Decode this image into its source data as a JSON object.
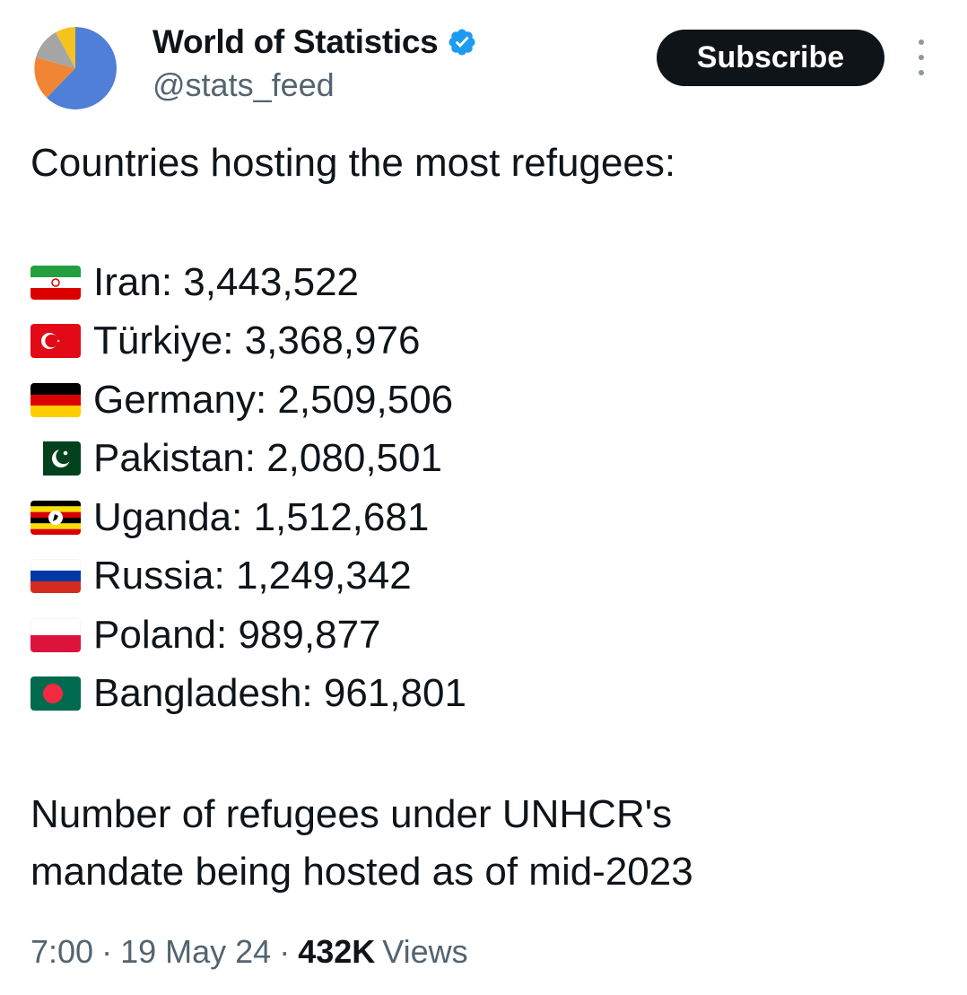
{
  "author": {
    "display_name": "World of Statistics",
    "handle": "@stats_feed",
    "verified_icon": "verified-badge-icon"
  },
  "actions": {
    "subscribe_label": "Subscribe",
    "more_icon": "more-vertical-icon"
  },
  "tweet": {
    "headline": "Countries hosting the most refugees:",
    "items": [
      {
        "flag": "iran-flag-icon",
        "text": "Iran: 3,443,522"
      },
      {
        "flag": "turkiye-flag-icon",
        "text": "Türkiye: 3,368,976"
      },
      {
        "flag": "germany-flag-icon",
        "text": "Germany: 2,509,506"
      },
      {
        "flag": "pakistan-flag-icon",
        "text": "Pakistan: 2,080,501"
      },
      {
        "flag": "uganda-flag-icon",
        "text": "Uganda: 1,512,681"
      },
      {
        "flag": "russia-flag-icon",
        "text": "Russia: 1,249,342"
      },
      {
        "flag": "poland-flag-icon",
        "text": "Poland: 989,877"
      },
      {
        "flag": "bangladesh-flag-icon",
        "text": "Bangladesh: 961,801"
      }
    ],
    "footnote_line1": "Number of refugees under UNHCR's",
    "footnote_line2": "mandate being hosted as of mid-2023"
  },
  "meta": {
    "time": "7:00",
    "separator": "·",
    "date": "19 May 24",
    "views_count": "432K",
    "views_label": "Views"
  },
  "colors": {
    "text": "#0f1419",
    "secondary": "#536471",
    "verified": "#1d9bf0",
    "button": "#0f1419"
  }
}
